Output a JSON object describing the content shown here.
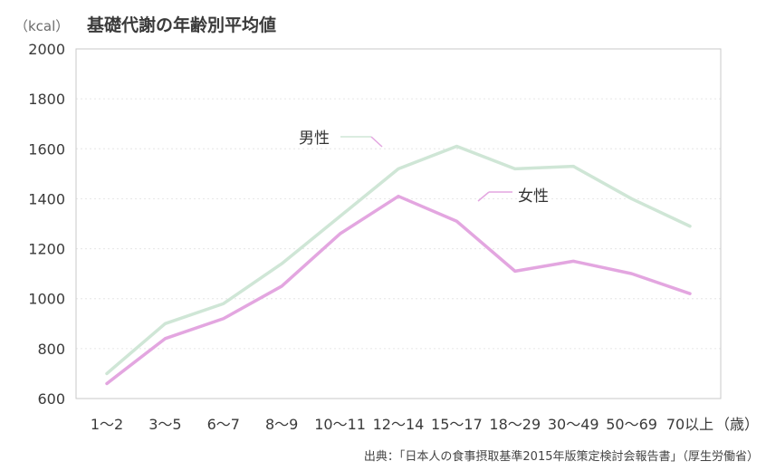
{
  "chart_data": {
    "type": "line",
    "title_unit": "（kcal）",
    "title": "基礎代謝の年齢別平均値",
    "xlabel": "",
    "ylabel": "",
    "categories": [
      "1〜2",
      "3〜5",
      "6〜7",
      "8〜9",
      "10〜11",
      "12〜14",
      "15〜17",
      "18〜29",
      "30〜49",
      "50〜69",
      "70以上"
    ],
    "x_unit": "（歳）",
    "ylim": [
      600,
      2000
    ],
    "yticks": [
      600,
      800,
      1000,
      1200,
      1400,
      1600,
      1800,
      2000
    ],
    "grid": true,
    "series": [
      {
        "name": "男性",
        "color": "#cfe6d6",
        "values": [
          700,
          900,
          980,
          1140,
          1330,
          1520,
          1610,
          1520,
          1530,
          1400,
          1290
        ]
      },
      {
        "name": "女性",
        "color": "#e3a6e0",
        "values": [
          660,
          840,
          920,
          1050,
          1260,
          1410,
          1310,
          1110,
          1150,
          1100,
          1020
        ]
      }
    ],
    "source": "出典：「日本人の食事摂取基準2015年版策定検討会報告書」（厚生労働省）"
  }
}
